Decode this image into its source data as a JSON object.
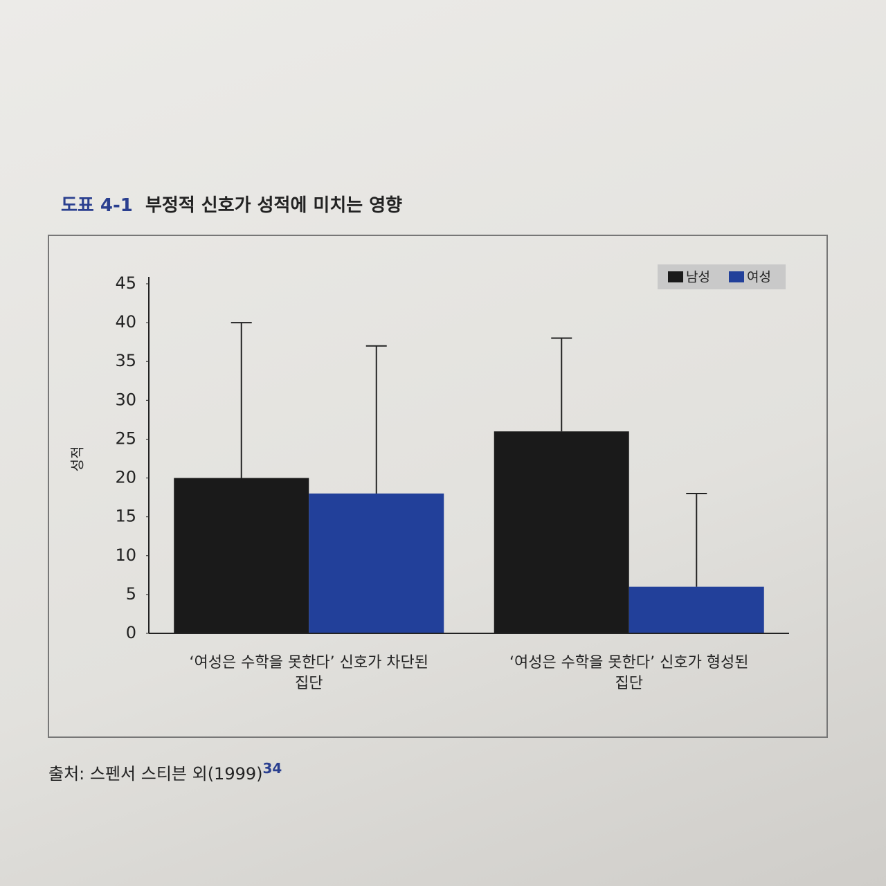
{
  "figure_label": "도표 4-1",
  "source": "출처: 스펜서 스티븐 외(1999)",
  "source_note": "34",
  "chart_data": {
    "type": "bar",
    "title": "부정적 신호가 성적에 미치는 영향",
    "y_label": "성적",
    "categories": [
      "‘여성은 수학을 못한다’ 신호가 차단된 집단",
      "‘여성은 수학을 못한다’ 신호가 형성된 집단"
    ],
    "series": [
      {
        "name": "남성",
        "color": "#1a1a1a",
        "values": [
          20,
          26
        ],
        "errors": [
          20,
          12
        ]
      },
      {
        "name": "여성",
        "color": "#22409a",
        "values": [
          18,
          6
        ],
        "errors": [
          19,
          12
        ]
      }
    ],
    "ylim": [
      0,
      45
    ],
    "yticks": [
      0,
      5,
      10,
      15,
      20,
      25,
      30,
      35,
      40,
      45
    ],
    "grid": false,
    "legend": "top-right"
  }
}
